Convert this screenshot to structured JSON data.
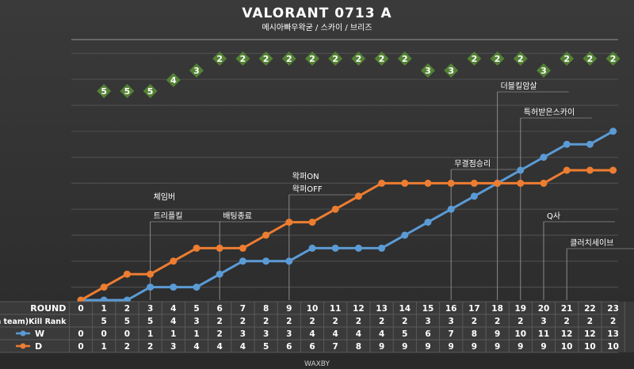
{
  "header": {
    "title": "VALORANT 0713 A",
    "subtitle": "메시아빠우왁굳 / 스카이 / 브리즈"
  },
  "footer": {
    "credit": "WAXBY"
  },
  "colors": {
    "background": "#333333",
    "W": "#5B9BD5",
    "D": "#ED7D31",
    "rank_diamond": "#548235",
    "gridline": "#4d4d4d",
    "text": "#ffffff"
  },
  "chart_data": {
    "type": "line",
    "x": [
      0,
      1,
      2,
      3,
      4,
      5,
      6,
      7,
      8,
      9,
      10,
      11,
      12,
      13,
      14,
      15,
      16,
      17,
      18,
      19,
      20,
      21,
      22,
      23
    ],
    "series": [
      {
        "name": "W",
        "values": [
          0,
          0,
          0,
          1,
          1,
          1,
          2,
          3,
          3,
          3,
          4,
          4,
          4,
          4,
          5,
          6,
          7,
          8,
          9,
          10,
          11,
          12,
          12,
          13
        ]
      },
      {
        "name": "D",
        "values": [
          0,
          1,
          2,
          2,
          3,
          4,
          4,
          4,
          5,
          6,
          6,
          7,
          8,
          9,
          9,
          9,
          9,
          9,
          9,
          9,
          9,
          10,
          10,
          10
        ]
      }
    ],
    "kill_rank": {
      "label": "(in team)Kill Rank",
      "rounds": [
        1,
        2,
        3,
        4,
        5,
        6,
        7,
        8,
        9,
        10,
        11,
        12,
        13,
        14,
        15,
        16,
        17,
        18,
        19,
        20,
        21,
        22,
        23
      ],
      "values": [
        5,
        5,
        5,
        4,
        3,
        2,
        2,
        2,
        2,
        2,
        2,
        2,
        2,
        2,
        3,
        3,
        2,
        2,
        2,
        3,
        2,
        2,
        2
      ]
    },
    "row_labels": {
      "round": "ROUND",
      "rank": "(in team)Kill Rank"
    },
    "ylim": [
      0,
      19
    ],
    "legend": "left",
    "annotations": [
      {
        "round": 3,
        "lines": [
          "체임버",
          "트리플킬"
        ]
      },
      {
        "round": 6,
        "lines": [
          "배팅종료"
        ]
      },
      {
        "round": 9,
        "lines": [
          "왁퍼ON",
          "왁퍼OFF"
        ]
      },
      {
        "round": 16,
        "lines": [
          "무결점승리"
        ]
      },
      {
        "round": 18,
        "lines": [
          "더블킬암살"
        ]
      },
      {
        "round": 19,
        "lines": [
          "특허받은스카이"
        ]
      },
      {
        "round": 20,
        "lines": [
          "Q사"
        ]
      },
      {
        "round": 21,
        "lines": [
          "클러치세이브"
        ]
      }
    ]
  }
}
